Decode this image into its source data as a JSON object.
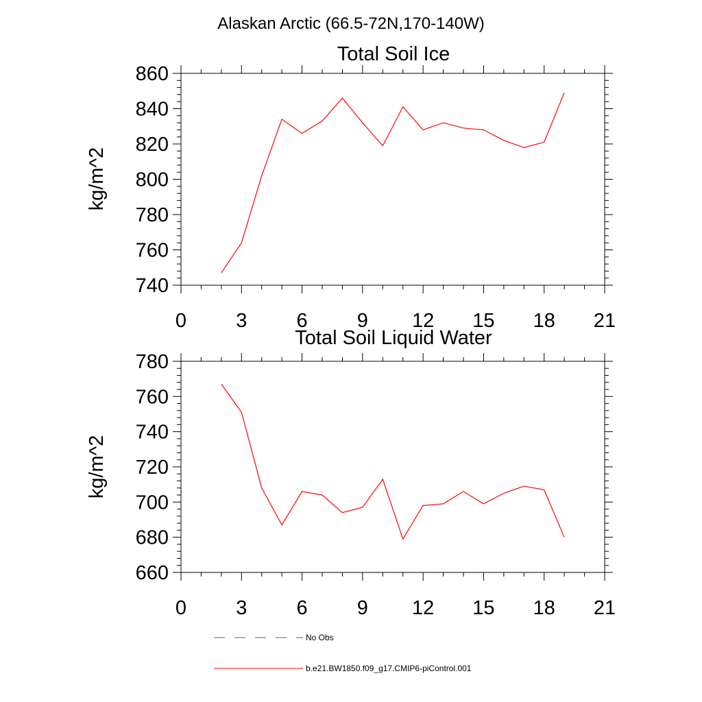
{
  "figure_title": "Alaskan Arctic (66.5-72N,170-140W)",
  "legend": {
    "entries": [
      {
        "label": "No Obs",
        "style": "dashed",
        "color": "#5a5f8a"
      },
      {
        "label": "b.e21.BW1850.f09_g17.CMIP6-piControl.001",
        "style": "solid",
        "color": "#ff0000"
      }
    ]
  },
  "chart_data": [
    {
      "type": "line",
      "title": "Total Soil Ice",
      "ylabel": "kg/m^2",
      "xlabel": "",
      "xlim": [
        0,
        21
      ],
      "ylim": [
        740,
        860
      ],
      "xticks": [
        0,
        3,
        6,
        9,
        12,
        15,
        18,
        21
      ],
      "yticks": [
        740,
        760,
        780,
        800,
        820,
        840,
        860
      ],
      "grid": false,
      "series": [
        {
          "name": "b.e21.BW1850.f09_g17.CMIP6-piControl.001",
          "color": "#ff0000",
          "x": [
            2,
            3,
            4,
            5,
            6,
            7,
            8,
            9,
            10,
            11,
            12,
            13,
            14,
            15,
            16,
            17,
            18,
            19
          ],
          "values": [
            747,
            764,
            802,
            834,
            826,
            833,
            846,
            832,
            819,
            841,
            828,
            832,
            829,
            828,
            822,
            818,
            821,
            849
          ]
        }
      ]
    },
    {
      "type": "line",
      "title": "Total Soil Liquid Water",
      "ylabel": "kg/m^2",
      "xlabel": "",
      "xlim": [
        0,
        21
      ],
      "ylim": [
        660,
        780
      ],
      "xticks": [
        0,
        3,
        6,
        9,
        12,
        15,
        18,
        21
      ],
      "yticks": [
        660,
        680,
        700,
        720,
        740,
        760,
        780
      ],
      "grid": false,
      "series": [
        {
          "name": "b.e21.BW1850.f09_g17.CMIP6-piControl.001",
          "color": "#ff0000",
          "x": [
            2,
            3,
            4,
            5,
            6,
            7,
            8,
            9,
            10,
            11,
            12,
            13,
            14,
            15,
            16,
            17,
            18,
            19
          ],
          "values": [
            767,
            751,
            708,
            687,
            706,
            704,
            694,
            697,
            713,
            679,
            698,
            699,
            706,
            699,
            705,
            709,
            707,
            680
          ]
        }
      ]
    }
  ]
}
